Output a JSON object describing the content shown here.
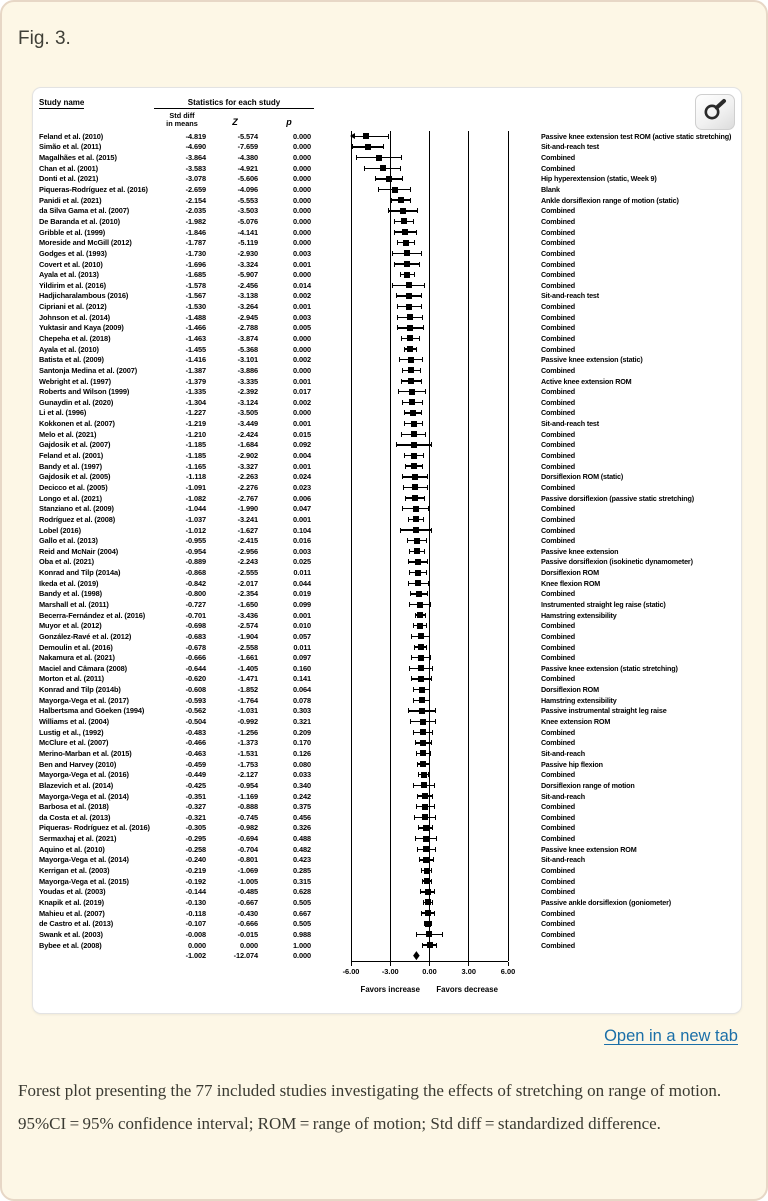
{
  "figure_label": "Fig. 3.",
  "link": {
    "open_new_tab": "Open in a new tab"
  },
  "caption": "Forest plot presenting the 77 included studies investigating the effects of stretching on range of motion. 95%CI = 95% confidence interval; ROM = range of motion; Std diff = standardized difference.",
  "icons": {
    "magnifier": "magnifier-icon"
  },
  "chart_data": {
    "type": "forest",
    "headers": {
      "study": "Study name",
      "stats_group": "Statistics for each study",
      "std_diff_line1": "Std diff",
      "std_diff_line2": "in means",
      "z": "Z",
      "p": "p"
    },
    "axis": {
      "xlim": [
        -6,
        6
      ],
      "ticks": [
        -6,
        -3,
        0,
        3,
        6
      ],
      "tick_labels": [
        "-6.00",
        "-3.00",
        "0.00",
        "3.00",
        "6.00"
      ],
      "favors_left": "Favors increase",
      "favors_right": "Favors decrease"
    },
    "studies": [
      {
        "name": "Feland et al. (2010)",
        "sd": "-4.819",
        "z": "-5.574",
        "p": "0.000",
        "label": "Passive knee extension test ROM (active static stretching)"
      },
      {
        "name": "Simão et al. (2011)",
        "sd": "-4.690",
        "z": "-7.659",
        "p": "0.000",
        "label": "Sit-and-reach test"
      },
      {
        "name": "Magalhães et al. (2015)",
        "sd": "-3.864",
        "z": "-4.380",
        "p": "0.000",
        "label": "Combined"
      },
      {
        "name": "Chan et al. (2001)",
        "sd": "-3.583",
        "z": "-4.921",
        "p": "0.000",
        "label": "Combined"
      },
      {
        "name": "Donti et al. (2021)",
        "sd": "-3.078",
        "z": "-5.606",
        "p": "0.000",
        "label": "Hip hyperextension (static, Week 9)"
      },
      {
        "name": "Piqueras-Rodríguez et al. (2016)",
        "sd": "-2.659",
        "z": "-4.096",
        "p": "0.000",
        "label": "Blank"
      },
      {
        "name": "Panidi et al. (2021)",
        "sd": "-2.154",
        "z": "-5.553",
        "p": "0.000",
        "label": "Ankle dorsiflexion range of motion (static)"
      },
      {
        "name": "da Silva Gama et al. (2007)",
        "sd": "-2.035",
        "z": "-3.503",
        "p": "0.000",
        "label": "Combined"
      },
      {
        "name": "De Baranda et al. (2010)",
        "sd": "-1.982",
        "z": "-5.076",
        "p": "0.000",
        "label": "Combined"
      },
      {
        "name": "Gribble et al. (1999)",
        "sd": "-1.846",
        "z": "-4.141",
        "p": "0.000",
        "label": "Combined"
      },
      {
        "name": "Moreside and McGill (2012)",
        "sd": "-1.787",
        "z": "-5.119",
        "p": "0.000",
        "label": "Combined"
      },
      {
        "name": "Godges et al. (1993)",
        "sd": "-1.730",
        "z": "-2.930",
        "p": "0.003",
        "label": "Combined"
      },
      {
        "name": "Covert et al. (2010)",
        "sd": "-1.696",
        "z": "-3.324",
        "p": "0.001",
        "label": "Combined"
      },
      {
        "name": "Ayala et al. (2013)",
        "sd": "-1.685",
        "z": "-5.907",
        "p": "0.000",
        "label": "Combined"
      },
      {
        "name": "Yildirim et al. (2016)",
        "sd": "-1.578",
        "z": "-2.456",
        "p": "0.014",
        "label": "Combined"
      },
      {
        "name": "Hadjicharalambous (2016)",
        "sd": "-1.567",
        "z": "-3.138",
        "p": "0.002",
        "label": "Sit-and-reach test"
      },
      {
        "name": "Cipriani et al. (2012)",
        "sd": "-1.530",
        "z": "-3.264",
        "p": "0.001",
        "label": "Combined"
      },
      {
        "name": "Johnson et al. (2014)",
        "sd": "-1.488",
        "z": "-2.945",
        "p": "0.003",
        "label": "Combined"
      },
      {
        "name": "Yuktasir and Kaya (2009)",
        "sd": "-1.466",
        "z": "-2.788",
        "p": "0.005",
        "label": "Combined"
      },
      {
        "name": "Chepeha et al. (2018)",
        "sd": "-1.463",
        "z": "-3.874",
        "p": "0.000",
        "label": "Combined"
      },
      {
        "name": "Ayala et al. (2010)",
        "sd": "-1.455",
        "z": "-5.368",
        "p": "0.000",
        "label": "Combined"
      },
      {
        "name": "Batista et al. (2009)",
        "sd": "-1.416",
        "z": "-3.101",
        "p": "0.002",
        "label": "Passive knee extension (static)"
      },
      {
        "name": "Santonja Medina et al. (2007)",
        "sd": "-1.387",
        "z": "-3.886",
        "p": "0.000",
        "label": "Combined"
      },
      {
        "name": "Webright et al. (1997)",
        "sd": "-1.379",
        "z": "-3.335",
        "p": "0.001",
        "label": "Active knee extension ROM"
      },
      {
        "name": "Roberts and Wilson (1999)",
        "sd": "-1.335",
        "z": "-2.392",
        "p": "0.017",
        "label": "Combined"
      },
      {
        "name": "Gunaydin et al. (2020)",
        "sd": "-1.304",
        "z": "-3.124",
        "p": "0.002",
        "label": "Combined"
      },
      {
        "name": "Li et al. (1996)",
        "sd": "-1.227",
        "z": "-3.505",
        "p": "0.000",
        "label": "Combined"
      },
      {
        "name": "Kokkonen et al. (2007)",
        "sd": "-1.219",
        "z": "-3.449",
        "p": "0.001",
        "label": "Sit-and-reach test"
      },
      {
        "name": "Melo et al. (2021)",
        "sd": "-1.210",
        "z": "-2.424",
        "p": "0.015",
        "label": "Combined"
      },
      {
        "name": "Gajdosik et al. (2007)",
        "sd": "-1.185",
        "z": "-1.684",
        "p": "0.092",
        "label": "Combined"
      },
      {
        "name": "Feland et al. (2001)",
        "sd": "-1.185",
        "z": "-2.902",
        "p": "0.004",
        "label": "Combined"
      },
      {
        "name": "Bandy et al. (1997)",
        "sd": "-1.165",
        "z": "-3.327",
        "p": "0.001",
        "label": "Combined"
      },
      {
        "name": "Gajdosik et al. (2005)",
        "sd": "-1.118",
        "z": "-2.263",
        "p": "0.024",
        "label": "Dorsiflexion ROM (static)"
      },
      {
        "name": "Decicco et al. (2005)",
        "sd": "-1.091",
        "z": "-2.276",
        "p": "0.023",
        "label": "Combined"
      },
      {
        "name": "Longo et al. (2021)",
        "sd": "-1.082",
        "z": "-2.767",
        "p": "0.006",
        "label": "Passive dorsiflexion (passive static stretching)"
      },
      {
        "name": "Stanziano et al. (2009)",
        "sd": "-1.044",
        "z": "-1.990",
        "p": "0.047",
        "label": "Combined"
      },
      {
        "name": "Rodríguez et al. (2008)",
        "sd": "-1.037",
        "z": "-3.241",
        "p": "0.001",
        "label": "Combined"
      },
      {
        "name": "Lobel (2016)",
        "sd": "-1.012",
        "z": "-1.627",
        "p": "0.104",
        "label": "Combined"
      },
      {
        "name": "Gallo et al. (2013)",
        "sd": "-0.955",
        "z": "-2.415",
        "p": "0.016",
        "label": "Combined"
      },
      {
        "name": "Reid and McNair (2004)",
        "sd": "-0.954",
        "z": "-2.956",
        "p": "0.003",
        "label": "Passive knee extension"
      },
      {
        "name": "Oba et al. (2021)",
        "sd": "-0.889",
        "z": "-2.243",
        "p": "0.025",
        "label": "Passive dorsiflexion (isokinetic dynamometer)"
      },
      {
        "name": "Konrad and Tilp (2014a)",
        "sd": "-0.868",
        "z": "-2.555",
        "p": "0.011",
        "label": "Dorsiflexion ROM"
      },
      {
        "name": "Ikeda et al. (2019)",
        "sd": "-0.842",
        "z": "-2.017",
        "p": "0.044",
        "label": "Knee flexion ROM"
      },
      {
        "name": "Bandy et al. (1998)",
        "sd": "-0.800",
        "z": "-2.354",
        "p": "0.019",
        "label": "Combined"
      },
      {
        "name": "Marshall et al. (2011)",
        "sd": "-0.727",
        "z": "-1.650",
        "p": "0.099",
        "label": "Instrumented straight leg raise (static)"
      },
      {
        "name": "Becerra-Fernández et al. (2016)",
        "sd": "-0.701",
        "z": "-3.436",
        "p": "0.001",
        "label": "Hamstring extensibility"
      },
      {
        "name": "Muyor et al. (2012)",
        "sd": "-0.698",
        "z": "-2.574",
        "p": "0.010",
        "label": "Combined"
      },
      {
        "name": "González-Ravé et al. (2012)",
        "sd": "-0.683",
        "z": "-1.904",
        "p": "0.057",
        "label": "Combined"
      },
      {
        "name": "Demoulin et al. (2016)",
        "sd": "-0.678",
        "z": "-2.558",
        "p": "0.011",
        "label": "Combined"
      },
      {
        "name": "Nakamura et al. (2021)",
        "sd": "-0.666",
        "z": "-1.661",
        "p": "0.097",
        "label": "Combined"
      },
      {
        "name": "Maciel and Câmara (2008)",
        "sd": "-0.644",
        "z": "-1.405",
        "p": "0.160",
        "label": "Passive knee extension (static stretching)"
      },
      {
        "name": "Morton et al. (2011)",
        "sd": "-0.620",
        "z": "-1.471",
        "p": "0.141",
        "label": "Combined"
      },
      {
        "name": "Konrad and Tilp (2014b)",
        "sd": "-0.608",
        "z": "-1.852",
        "p": "0.064",
        "label": "Dorsiflexion ROM"
      },
      {
        "name": "Mayorga-Vega et al. (2017)",
        "sd": "-0.593",
        "z": "-1.764",
        "p": "0.078",
        "label": "Hamstring extensibility"
      },
      {
        "name": "Halbertsma and Göeken (1994)",
        "sd": "-0.562",
        "z": "-1.031",
        "p": "0.303",
        "label": "Passive instrumental straight leg raise"
      },
      {
        "name": "Williams et al. (2004)",
        "sd": "-0.504",
        "z": "-0.992",
        "p": "0.321",
        "label": "Knee extension ROM"
      },
      {
        "name": "Lustig et al., (1992)",
        "sd": "-0.483",
        "z": "-1.256",
        "p": "0.209",
        "label": "Combined"
      },
      {
        "name": "McClure et al. (2007)",
        "sd": "-0.466",
        "z": "-1.373",
        "p": "0.170",
        "label": "Combined"
      },
      {
        "name": "Merino-Marban et al. (2015)",
        "sd": "-0.463",
        "z": "-1.531",
        "p": "0.126",
        "label": "Sit-and-reach"
      },
      {
        "name": "Ben and Harvey (2010)",
        "sd": "-0.459",
        "z": "-1.753",
        "p": "0.080",
        "label": "Passive hip flexion"
      },
      {
        "name": "Mayorga-Vega et al. (2016)",
        "sd": "-0.449",
        "z": "-2.127",
        "p": "0.033",
        "label": "Combined"
      },
      {
        "name": "Blazevich et al. (2014)",
        "sd": "-0.425",
        "z": "-0.954",
        "p": "0.340",
        "label": "Dorsiflexion range of motion"
      },
      {
        "name": "Mayorga-Vega et al. (2014)",
        "sd": "-0.351",
        "z": "-1.169",
        "p": "0.242",
        "label": "Sit-and-reach"
      },
      {
        "name": "Barbosa et al. (2018)",
        "sd": "-0.327",
        "z": "-0.888",
        "p": "0.375",
        "label": "Combined"
      },
      {
        "name": "da Costa et al. (2013)",
        "sd": "-0.321",
        "z": "-0.745",
        "p": "0.456",
        "label": "Combined"
      },
      {
        "name": "Piqueras- Rodríguez et al. (2016)",
        "sd": "-0.305",
        "z": "-0.982",
        "p": "0.326",
        "label": "Combined"
      },
      {
        "name": "Sermaxhaj et al. (2021)",
        "sd": "-0.295",
        "z": "-0.694",
        "p": "0.488",
        "label": "Combined"
      },
      {
        "name": "Aquino et al. (2010)",
        "sd": "-0.258",
        "z": "-0.704",
        "p": "0.482",
        "label": "Passive knee extension ROM"
      },
      {
        "name": "Mayorga-Vega et al. (2014)",
        "sd": "-0.240",
        "z": "-0.801",
        "p": "0.423",
        "label": "Sit-and-reach"
      },
      {
        "name": "Kerrigan et al. (2003)",
        "sd": "-0.219",
        "z": "-1.069",
        "p": "0.285",
        "label": "Combined"
      },
      {
        "name": "Mayorga-Vega et al. (2015)",
        "sd": "-0.192",
        "z": "-1.005",
        "p": "0.315",
        "label": "Combined"
      },
      {
        "name": "Youdas et al. (2003)",
        "sd": "-0.144",
        "z": "-0.485",
        "p": "0.628",
        "label": "Combined"
      },
      {
        "name": "Knapik et al. (2019)",
        "sd": "-0.130",
        "z": "-0.667",
        "p": "0.505",
        "label": "Passive ankle dorsiflexion (goniometer)"
      },
      {
        "name": "Mahieu et al. (2007)",
        "sd": "-0.118",
        "z": "-0.430",
        "p": "0.667",
        "label": "Combined"
      },
      {
        "name": "de Castro et al. (2013)",
        "sd": "-0.107",
        "z": "-0.666",
        "p": "0.505",
        "label": "Combined"
      },
      {
        "name": "Swank et al. (2003)",
        "sd": "-0.008",
        "z": "-0.015",
        "p": "0.988",
        "label": "Combined"
      },
      {
        "name": "Bybee et al. (2008)",
        "sd": "0.000",
        "z": "0.000",
        "p": "1.000",
        "label": "Combined"
      }
    ],
    "summary": {
      "sd": "-1.002",
      "z": "-12.074",
      "p": "0.000"
    }
  }
}
